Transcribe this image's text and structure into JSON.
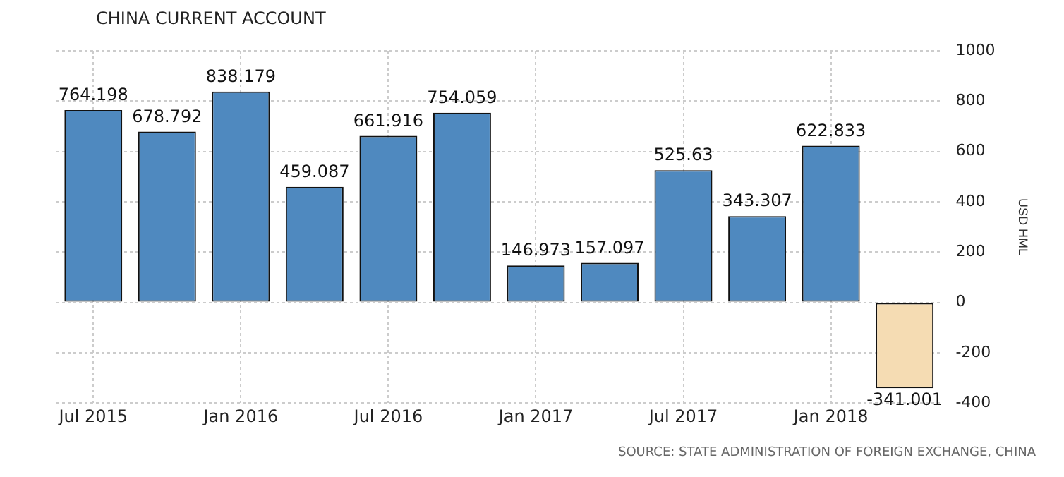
{
  "chart_data": {
    "type": "bar",
    "title": "CHINA CURRENT ACCOUNT",
    "y2label": "USD HML",
    "categories": [
      "Jul 2015",
      null,
      "Jan 2016",
      null,
      "Jul 2016",
      null,
      "Jan 2017",
      null,
      "Jul 2017",
      null,
      "Jan 2018",
      null
    ],
    "values": [
      764.198,
      678.792,
      838.179,
      459.087,
      661.916,
      754.059,
      146.973,
      157.097,
      525.63,
      343.307,
      622.833,
      -341.001
    ],
    "colors": [
      "#4f89bf",
      "#4f89bf",
      "#4f89bf",
      "#4f89bf",
      "#4f89bf",
      "#4f89bf",
      "#4f89bf",
      "#4f89bf",
      "#4f89bf",
      "#4f89bf",
      "#4f89bf",
      "#f5dcb3"
    ],
    "y2lim": [
      -400,
      1000
    ],
    "y2ticks": [
      -400,
      -200,
      0,
      200,
      400,
      600,
      800,
      1000
    ],
    "grid": true,
    "data_labels": true,
    "annotations": [
      "SOURCE: STATE ADMINISTRATION OF FOREIGN EXCHANGE, CHINA"
    ]
  }
}
